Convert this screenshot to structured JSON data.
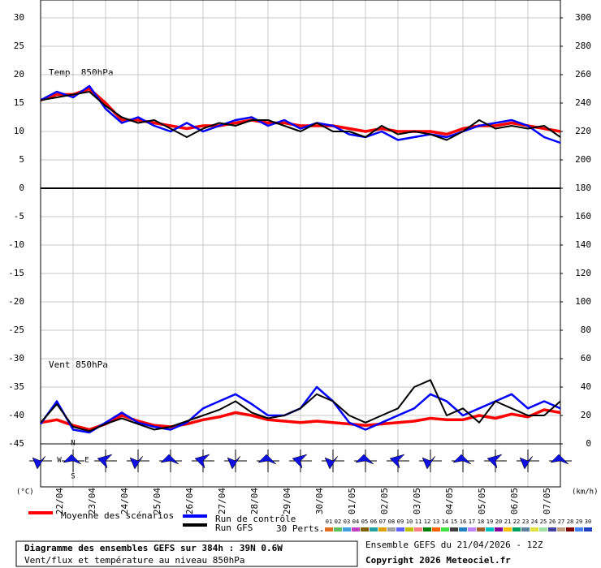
{
  "chart_data": {
    "type": "line",
    "annotations": [
      "Temp. 850hPa",
      "Vent 850hPa"
    ],
    "x_labels": [
      "22/04",
      "23/04",
      "24/04",
      "25/04",
      "26/04",
      "27/04",
      "28/04",
      "29/04",
      "30/04",
      "01/05",
      "02/05",
      "03/05",
      "04/05",
      "05/05",
      "06/05",
      "07/05"
    ],
    "ylim": [
      -45,
      30
    ],
    "yticks": [
      30,
      25,
      20,
      15,
      10,
      5,
      0,
      -5,
      -10,
      -15,
      -20,
      -25,
      -30,
      -35,
      -40,
      -45
    ],
    "y2lim": [
      0,
      300
    ],
    "y2ticks": [
      300,
      280,
      260,
      240,
      220,
      200,
      180,
      160,
      140,
      120,
      100,
      80,
      60,
      40,
      20,
      0
    ],
    "y_unit": "(°C)",
    "y2_unit": "(km/h)",
    "grid": true,
    "series": [
      {
        "name": "Moyenne des scénarios",
        "color": "#ff0000",
        "width": 3.5,
        "values": [
          15.5,
          16.5,
          16.5,
          17.5,
          15,
          12,
          12,
          11.5,
          11,
          10.5,
          11,
          11,
          11.5,
          12,
          11.5,
          11.5,
          11,
          11,
          11,
          10.5,
          10,
          10.5,
          10,
          10,
          10,
          9.5,
          10.5,
          11,
          11,
          11.5,
          11,
          10.5,
          10
        ]
      },
      {
        "name": "Run de contrôle",
        "color": "#0000ff",
        "width": 2.5,
        "values": [
          15.5,
          17,
          16,
          18,
          14,
          11.5,
          12.5,
          11,
          10,
          11.5,
          10,
          11,
          12,
          12.5,
          11,
          12,
          10.5,
          11.5,
          11,
          9.5,
          9,
          10,
          8.5,
          9,
          9.5,
          9,
          10,
          11,
          11.5,
          12,
          11,
          9,
          8
        ]
      },
      {
        "name": "Run GFS",
        "color": "#000000",
        "width": 2,
        "values": [
          15.5,
          16,
          16.5,
          17,
          14.5,
          12.5,
          11.5,
          12,
          10.5,
          9,
          10.5,
          11.5,
          11,
          12,
          12,
          11,
          10,
          11.5,
          10,
          10,
          9,
          11,
          9.5,
          10,
          9.5,
          8.5,
          10,
          12,
          10.5,
          11,
          10.5,
          11,
          9
        ]
      },
      {
        "name": "Moyenne des scénarios",
        "color": "#ff0000",
        "width": 3.5,
        "axis": "y2",
        "legend": false,
        "values": [
          15,
          17,
          13,
          10,
          14,
          20,
          16,
          13,
          12,
          14,
          17,
          19,
          22,
          20,
          17,
          16,
          15,
          16,
          15,
          14,
          13,
          14,
          15,
          16,
          18,
          17,
          17,
          20,
          18,
          21,
          19,
          24,
          22
        ]
      },
      {
        "name": "Run de contrôle",
        "color": "#0000ff",
        "width": 2.5,
        "axis": "y2",
        "legend": false,
        "values": [
          14,
          30,
          10,
          8,
          15,
          22,
          15,
          12,
          10,
          15,
          25,
          30,
          35,
          28,
          20,
          20,
          25,
          40,
          30,
          15,
          10,
          15,
          20,
          25,
          35,
          30,
          20,
          25,
          30,
          35,
          25,
          30,
          25
        ]
      },
      {
        "name": "Run GFS",
        "color": "#000000",
        "width": 2,
        "axis": "y2",
        "legend": false,
        "values": [
          15,
          28,
          12,
          9,
          14,
          18,
          14,
          10,
          12,
          16,
          20,
          24,
          30,
          22,
          18,
          20,
          25,
          35,
          30,
          20,
          15,
          20,
          25,
          40,
          45,
          20,
          25,
          15,
          30,
          25,
          20,
          20,
          30
        ]
      }
    ],
    "compass": [
      "N",
      "W",
      "E",
      "S"
    ],
    "perturbations_label": "30 Perts.",
    "perturbations": [
      {
        "name": "01",
        "color": "#e07020"
      },
      {
        "name": "02",
        "color": "#60c060"
      },
      {
        "name": "03",
        "color": "#40a0e0"
      },
      {
        "name": "04",
        "color": "#c040c0"
      },
      {
        "name": "05",
        "color": "#806000"
      },
      {
        "name": "06",
        "color": "#20a0a0"
      },
      {
        "name": "07",
        "color": "#e0a000"
      },
      {
        "name": "08",
        "color": "#a0a0a0"
      },
      {
        "name": "09",
        "color": "#6060ff"
      },
      {
        "name": "10",
        "color": "#c0c000"
      },
      {
        "name": "11",
        "color": "#ff8080"
      },
      {
        "name": "12",
        "color": "#008000"
      },
      {
        "name": "13",
        "color": "#ff6000"
      },
      {
        "name": "14",
        "color": "#40e040"
      },
      {
        "name": "15",
        "color": "#404040"
      },
      {
        "name": "16",
        "color": "#2080c0"
      },
      {
        "name": "17",
        "color": "#c080ff"
      },
      {
        "name": "18",
        "color": "#a06030"
      },
      {
        "name": "19",
        "color": "#00c0c0"
      },
      {
        "name": "20",
        "color": "#8000a0"
      },
      {
        "name": "21",
        "color": "#ffc000"
      },
      {
        "name": "22",
        "color": "#00a060"
      },
      {
        "name": "23",
        "color": "#6080a0"
      },
      {
        "name": "24",
        "color": "#e0e040"
      },
      {
        "name": "25",
        "color": "#a0e0a0"
      },
      {
        "name": "26",
        "color": "#4040a0"
      },
      {
        "name": "27",
        "color": "#c0a080"
      },
      {
        "name": "28",
        "color": "#800000"
      },
      {
        "name": "29",
        "color": "#4080ff"
      },
      {
        "name": "30",
        "color": "#2040c0"
      }
    ]
  },
  "footer": {
    "title": "Diagramme des ensembles GEFS sur 384h : 39N 0.6W",
    "subtitle": "Vent/flux et température au niveau 850hPa",
    "run": "Ensemble GEFS du 21/04/2026 - 12Z",
    "copyright": "Copyright 2026 Meteociel.fr"
  }
}
